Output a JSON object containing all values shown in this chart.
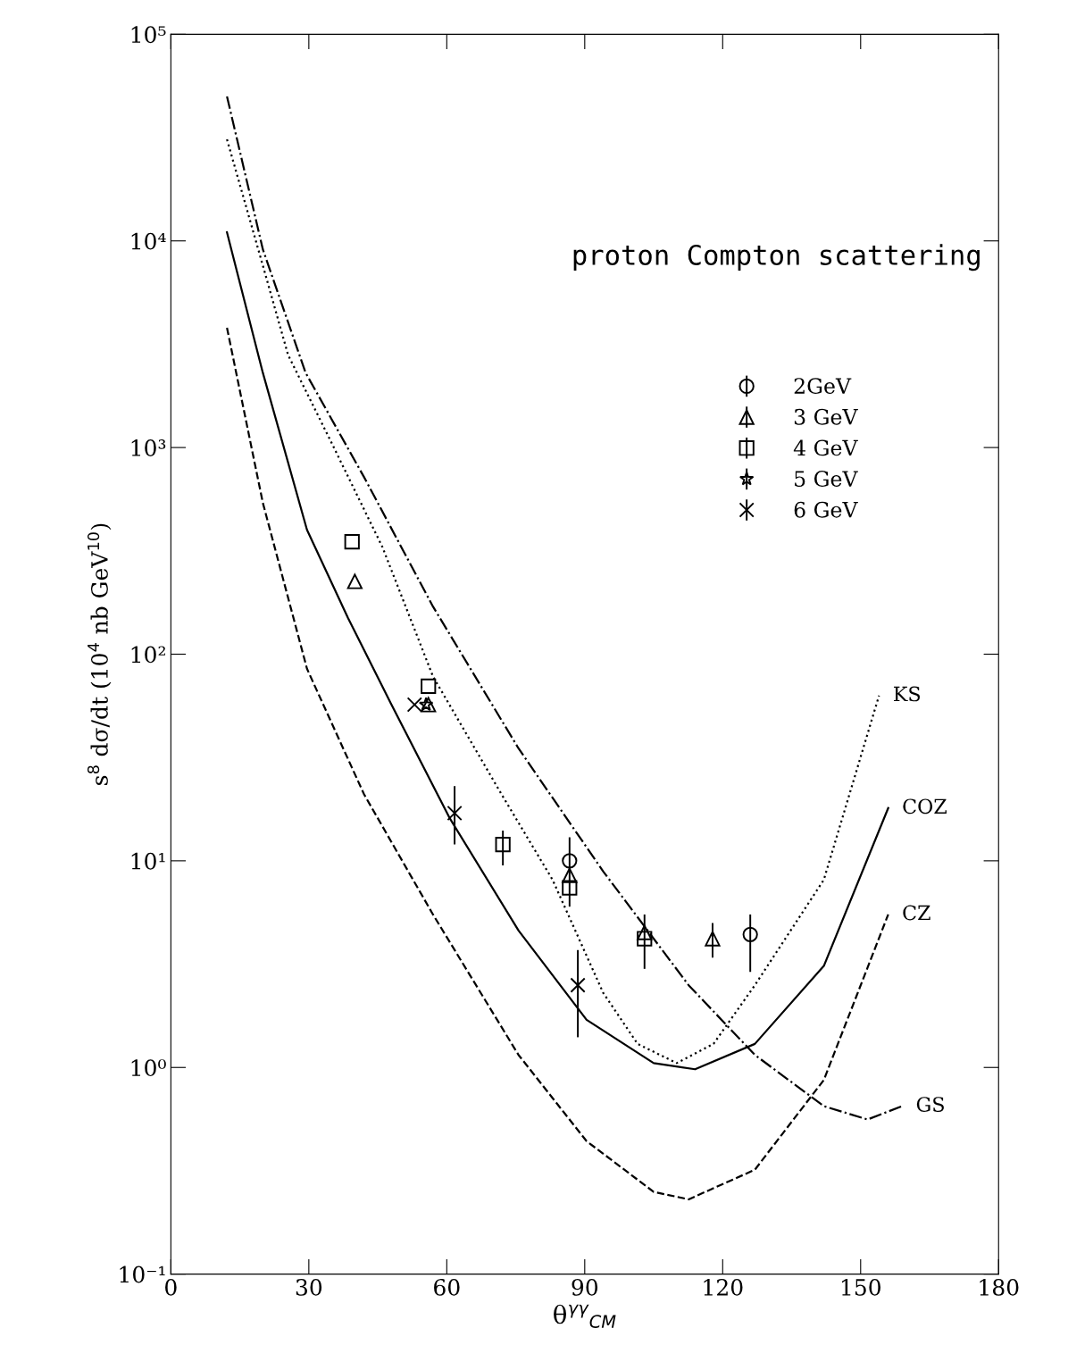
{
  "chart_data": {
    "type": "scatter",
    "xlabel": "θ$^{γγ}$$_{CM}$",
    "ylabel": "s$^{8}$ dσ/dt (10$^{4}$ nb GeV$^{10}$)",
    "log": "y",
    "grid": false,
    "legend": "top right",
    "xlim": [
      0,
      180
    ],
    "ylim": [
      0.1,
      100000
    ],
    "xticks": [
      0,
      30,
      60,
      90,
      120,
      150,
      180
    ],
    "yticks": [
      {
        "value": 0.1,
        "label": "10⁻¹"
      },
      {
        "value": 1,
        "label": "10⁰"
      },
      {
        "value": 10,
        "label": "10¹"
      },
      {
        "value": 100,
        "label": "10²"
      },
      {
        "value": 1000,
        "label": "10³"
      },
      {
        "value": 10000,
        "label": "10⁴"
      },
      {
        "value": 100000,
        "label": "10⁵"
      }
    ],
    "annotations": [
      "proton Compton scattering"
    ],
    "series": [
      {
        "name": "KS",
        "type": "line",
        "line_style": "dotted",
        "color": "#000000",
        "x": [
          12.2,
          20,
          25.5,
          34.8,
          46,
          57,
          71.9,
          83,
          94,
          101.5,
          110,
          118,
          127,
          142,
          154
        ],
        "values": [
          31000,
          7600,
          2800,
          1070,
          330,
          78,
          21,
          8.1,
          2.3,
          1.3,
          1.05,
          1.3,
          2.5,
          8.1,
          63
        ]
      },
      {
        "name": "COZ",
        "type": "line",
        "line_style": "solid",
        "color": "#000000",
        "x": [
          12.2,
          20,
          29.6,
          38.5,
          47.8,
          60.7,
          75.6,
          90.4,
          105,
          114,
          127,
          142,
          156
        ],
        "values": [
          11000,
          2300,
          400,
          150,
          58,
          16,
          4.6,
          1.7,
          1.05,
          0.98,
          1.3,
          3.1,
          18
        ]
      },
      {
        "name": "CZ",
        "type": "line",
        "line_style": "dashed",
        "color": "#000000",
        "x": [
          12.2,
          20,
          29.6,
          42,
          57,
          75.6,
          90.4,
          105,
          112.6,
          127,
          142,
          156
        ],
        "values": [
          3800,
          540,
          85,
          21,
          5.5,
          1.15,
          0.44,
          0.25,
          0.23,
          0.32,
          0.87,
          5.5
        ]
      },
      {
        "name": "GS",
        "type": "line",
        "line_style": "dashdot",
        "color": "#000000",
        "x": [
          12.2,
          20,
          29.3,
          42,
          57,
          75.6,
          94,
          112.6,
          127,
          142,
          151.5,
          159
        ],
        "values": [
          50000,
          9100,
          2300,
          720,
          170,
          35,
          8.9,
          2.5,
          1.15,
          0.65,
          0.56,
          0.65
        ]
      },
      {
        "name": "2GeV",
        "marker": "circle",
        "color": "#000000",
        "x": [
          86.7,
          126
        ],
        "values": [
          10,
          4.4
        ],
        "errors": [
          [
            6,
            13
          ],
          [
            2.9,
            5.5
          ]
        ]
      },
      {
        "name": "3 GeV",
        "marker": "triangle",
        "color": "#000000",
        "x": [
          40,
          56,
          86.7,
          103,
          117.8
        ],
        "values": [
          225,
          57,
          8.5,
          4.5,
          4.2
        ],
        "errors": [
          null,
          null,
          null,
          null,
          [
            3.4,
            5.0
          ]
        ]
      },
      {
        "name": "4 GeV",
        "marker": "square",
        "color": "#000000",
        "x": [
          39.4,
          56,
          72.2,
          86.7,
          103
        ],
        "values": [
          350,
          70,
          12,
          7.4,
          4.2
        ],
        "errors": [
          null,
          null,
          [
            9.5,
            14
          ],
          null,
          [
            3.0,
            5.5
          ]
        ]
      },
      {
        "name": "5 GeV",
        "marker": "star",
        "color": "#000000",
        "x": [
          55.5
        ],
        "values": [
          57
        ]
      },
      {
        "name": "6 GeV",
        "marker": "cross",
        "color": "#000000",
        "x": [
          53,
          61.7,
          88.5
        ],
        "values": [
          57,
          17,
          2.5
        ],
        "errors": [
          null,
          [
            12,
            23
          ],
          [
            1.4,
            3.7
          ]
        ]
      }
    ]
  }
}
